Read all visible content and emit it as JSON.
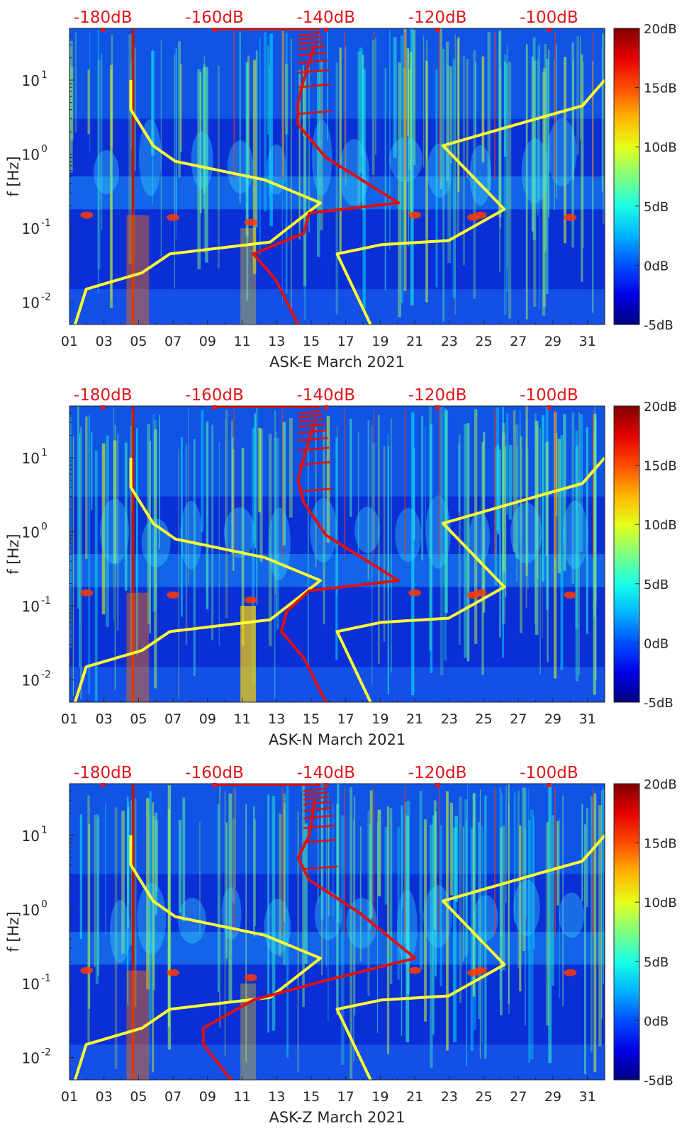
{
  "figure": {
    "panels": [
      {
        "id": "E",
        "xlabel": "ASK-E March 2021",
        "ylabel": "f [Hz]"
      },
      {
        "id": "N",
        "xlabel": "ASK-N March 2021",
        "ylabel": "f [Hz]"
      },
      {
        "id": "Z",
        "xlabel": "ASK-Z March 2021",
        "ylabel": "f [Hz]"
      }
    ],
    "colors": {
      "noise_model_line": "#ffff33",
      "psd_line": "#dd1111",
      "top_axis_text": "#e0161a",
      "axis_text": "#262626"
    },
    "colormap": "jet",
    "colorbar_labels": [
      "20dB",
      "15dB",
      "10dB",
      "5dB",
      "0dB",
      "-5dB"
    ]
  },
  "chart_data": [
    {
      "type": "heatmap",
      "title": "",
      "xlabel": "ASK-E March 2021",
      "ylabel": "f [Hz]",
      "x_ticks": [
        "01",
        "03",
        "05",
        "07",
        "09",
        "11",
        "13",
        "15",
        "17",
        "19",
        "21",
        "23",
        "25",
        "27",
        "29",
        "31"
      ],
      "xlim": [
        1,
        32
      ],
      "y_scale": "log",
      "y_ticks": [
        "10^-2",
        "10^-1",
        "10^0",
        "10^1"
      ],
      "ylim": [
        0.005,
        50
      ],
      "top_axis_ticks": [
        "-180dB",
        "-160dB",
        "-140dB",
        "-120dB",
        "-100dB"
      ],
      "top_axis_range": [
        -186,
        -90
      ],
      "colorbar": {
        "range": [
          -5,
          20
        ],
        "ticks": [
          "20dB",
          "15dB",
          "10dB",
          "5dB",
          "0dB",
          "-5dB"
        ]
      },
      "series": [
        {
          "color": "yellow",
          "x": [
            -185,
            -183,
            -173,
            -168,
            -150,
            -141,
            -151,
            -167,
            -171,
            -175,
            -175
          ],
          "y": [
            0.005,
            0.015,
            0.025,
            0.045,
            0.065,
            0.22,
            0.45,
            0.8,
            1.3,
            4,
            10
          ]
        },
        {
          "color": "yellow",
          "x": [
            -132,
            -138,
            -130,
            -118,
            -108,
            -119,
            -101,
            -94,
            -90
          ],
          "y": [
            0.005,
            0.045,
            0.06,
            0.068,
            0.18,
            1.3,
            3.2,
            4.5,
            10
          ]
        },
        {
          "color": "red",
          "x": [
            -145,
            -149,
            -153,
            -144,
            -143,
            -127,
            -140,
            -145,
            -145,
            -144,
            -142
          ],
          "y": [
            0.005,
            0.02,
            0.045,
            0.085,
            0.16,
            0.22,
            0.9,
            2.5,
            5,
            10,
            30
          ]
        }
      ]
    },
    {
      "type": "heatmap",
      "title": "",
      "xlabel": "ASK-N March 2021",
      "ylabel": "f [Hz]",
      "x_ticks": [
        "01",
        "03",
        "05",
        "07",
        "09",
        "11",
        "13",
        "15",
        "17",
        "19",
        "21",
        "23",
        "25",
        "27",
        "29",
        "31"
      ],
      "xlim": [
        1,
        32
      ],
      "y_scale": "log",
      "y_ticks": [
        "10^-2",
        "10^-1",
        "10^0",
        "10^1"
      ],
      "ylim": [
        0.005,
        50
      ],
      "top_axis_ticks": [
        "-180dB",
        "-160dB",
        "-140dB",
        "-120dB",
        "-100dB"
      ],
      "top_axis_range": [
        -186,
        -90
      ],
      "colorbar": {
        "range": [
          -5,
          20
        ],
        "ticks": [
          "20dB",
          "15dB",
          "10dB",
          "5dB",
          "0dB",
          "-5dB"
        ]
      },
      "series": [
        {
          "color": "yellow",
          "x": [
            -185,
            -183,
            -173,
            -168,
            -150,
            -141,
            -151,
            -167,
            -171,
            -175,
            -175
          ],
          "y": [
            0.005,
            0.015,
            0.025,
            0.045,
            0.065,
            0.22,
            0.45,
            0.8,
            1.3,
            4,
            10
          ]
        },
        {
          "color": "yellow",
          "x": [
            -132,
            -138,
            -130,
            -118,
            -108,
            -119,
            -101,
            -94,
            -90
          ],
          "y": [
            0.005,
            0.045,
            0.06,
            0.068,
            0.18,
            1.3,
            3.2,
            4.5,
            10
          ]
        },
        {
          "color": "red",
          "x": [
            -140,
            -144,
            -148,
            -147,
            -143,
            -127,
            -140,
            -144,
            -145,
            -144,
            -142
          ],
          "y": [
            0.005,
            0.02,
            0.045,
            0.085,
            0.16,
            0.22,
            0.9,
            2.5,
            5,
            10,
            30
          ]
        }
      ]
    },
    {
      "type": "heatmap",
      "title": "",
      "xlabel": "ASK-Z March 2021",
      "ylabel": "f [Hz]",
      "x_ticks": [
        "01",
        "03",
        "05",
        "07",
        "09",
        "11",
        "13",
        "15",
        "17",
        "19",
        "21",
        "23",
        "25",
        "27",
        "29",
        "31"
      ],
      "xlim": [
        1,
        32
      ],
      "y_scale": "log",
      "y_ticks": [
        "10^-2",
        "10^-1",
        "10^0",
        "10^1"
      ],
      "ylim": [
        0.005,
        50
      ],
      "top_axis_ticks": [
        "-180dB",
        "-160dB",
        "-140dB",
        "-120dB",
        "-100dB"
      ],
      "top_axis_range": [
        -186,
        -90
      ],
      "colorbar": {
        "range": [
          -5,
          20
        ],
        "ticks": [
          "20dB",
          "15dB",
          "10dB",
          "5dB",
          "0dB",
          "-5dB"
        ]
      },
      "series": [
        {
          "color": "yellow",
          "x": [
            -185,
            -183,
            -173,
            -168,
            -150,
            -141,
            -151,
            -167,
            -171,
            -175,
            -175
          ],
          "y": [
            0.005,
            0.015,
            0.025,
            0.045,
            0.065,
            0.22,
            0.45,
            0.8,
            1.3,
            4,
            10
          ]
        },
        {
          "color": "yellow",
          "x": [
            -132,
            -138,
            -130,
            -118,
            -108,
            -119,
            -101,
            -94,
            -90
          ],
          "y": [
            0.005,
            0.045,
            0.06,
            0.068,
            0.18,
            1.3,
            3.2,
            4.5,
            10
          ]
        },
        {
          "color": "red",
          "x": [
            -157,
            -162,
            -162,
            -153,
            -140,
            -124,
            -134,
            -143,
            -145,
            -143,
            -142
          ],
          "y": [
            0.005,
            0.015,
            0.025,
            0.06,
            0.11,
            0.22,
            0.9,
            2.5,
            5,
            10,
            30
          ]
        }
      ]
    }
  ]
}
